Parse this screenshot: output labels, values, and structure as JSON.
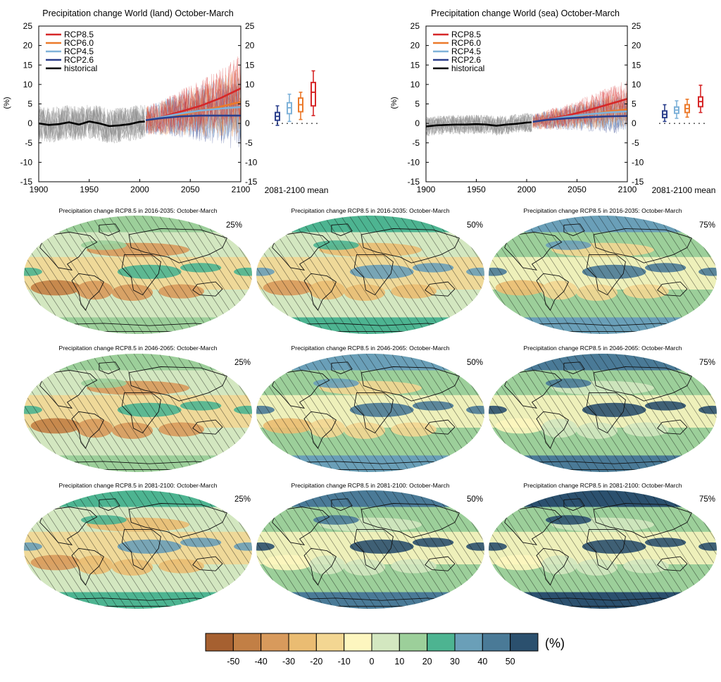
{
  "colors": {
    "rcp85": "#d62728",
    "rcp60": "#ec7a2b",
    "rcp45": "#7fb2d9",
    "rcp26": "#2b3f8c",
    "historical": "#000000",
    "historical_spread": "#8c8c8c"
  },
  "chart_data": [
    {
      "type": "line",
      "title": "Precipitation change World (land) October-March",
      "ylabel": "(%)",
      "xlim": [
        1900,
        2100
      ],
      "ylim": [
        -15,
        25
      ],
      "x_ticks": [
        "1900",
        "1950",
        "2000",
        "2050",
        "2100"
      ],
      "y_ticks": [
        "-15",
        "-10",
        "-5",
        "0",
        "5",
        "10",
        "15",
        "20",
        "25"
      ],
      "legend": [
        "RCP8.5",
        "RCP6.0",
        "RCP4.5",
        "RCP2.6",
        "historical"
      ],
      "legend_position": "top-left",
      "series": [
        {
          "name": "historical",
          "x": [
            1900,
            1910,
            1920,
            1930,
            1940,
            1950,
            1960,
            1970,
            1980,
            1990,
            2000,
            2005
          ],
          "values": [
            0,
            -0.4,
            -0.2,
            0.3,
            -0.3,
            0.5,
            0,
            -0.7,
            -0.5,
            -0.2,
            0.4,
            0.5
          ]
        },
        {
          "name": "RCP8.5",
          "x": [
            2006,
            2020,
            2040,
            2060,
            2080,
            2100
          ],
          "values": [
            0.8,
            1.5,
            3,
            4.5,
            6.5,
            9
          ]
        },
        {
          "name": "RCP6.0",
          "x": [
            2006,
            2020,
            2040,
            2060,
            2080,
            2100
          ],
          "values": [
            0.7,
            1.3,
            2.2,
            3.2,
            4.3,
            5.5
          ]
        },
        {
          "name": "RCP4.5",
          "x": [
            2006,
            2020,
            2040,
            2060,
            2080,
            2100
          ],
          "values": [
            0.8,
            1.5,
            2.5,
            3.3,
            3.8,
            4.2
          ]
        },
        {
          "name": "RCP2.6",
          "x": [
            2006,
            2020,
            2040,
            2060,
            2080,
            2100
          ],
          "values": [
            0.8,
            1.3,
            1.8,
            2,
            2,
            2
          ]
        }
      ],
      "boxplot": {
        "label": "2081-2100 mean",
        "series": [
          {
            "name": "RCP2.6",
            "whisker_low": -0.5,
            "q1": 0.8,
            "median": 1.8,
            "q3": 2.8,
            "whisker_high": 4.5
          },
          {
            "name": "RCP4.5",
            "whisker_low": 0.5,
            "q1": 2.5,
            "median": 4,
            "q3": 5.3,
            "whisker_high": 7.5
          },
          {
            "name": "RCP6.0",
            "whisker_low": 1,
            "q1": 3,
            "median": 4.8,
            "q3": 6.5,
            "whisker_high": 8
          },
          {
            "name": "RCP8.5",
            "whisker_low": 2,
            "q1": 4.5,
            "median": 8,
            "q3": 10.5,
            "whisker_high": 13.5
          }
        ]
      }
    },
    {
      "type": "line",
      "title": "Precipitation change World (sea) October-March",
      "ylabel": "(%)",
      "xlim": [
        1900,
        2100
      ],
      "ylim": [
        -15,
        25
      ],
      "x_ticks": [
        "1900",
        "1950",
        "2000",
        "2050",
        "2100"
      ],
      "y_ticks": [
        "-15",
        "-10",
        "-5",
        "0",
        "5",
        "10",
        "15",
        "20",
        "25"
      ],
      "legend": [
        "RCP8.5",
        "RCP6.0",
        "RCP4.5",
        "RCP2.6",
        "historical"
      ],
      "legend_position": "top-left",
      "series": [
        {
          "name": "historical",
          "x": [
            1900,
            1910,
            1920,
            1930,
            1940,
            1950,
            1960,
            1970,
            1980,
            1990,
            2000,
            2005
          ],
          "values": [
            -0.8,
            -0.5,
            -0.4,
            -0.3,
            -0.3,
            -0.2,
            -0.3,
            -0.6,
            -0.3,
            -0.1,
            0.2,
            0.3
          ]
        },
        {
          "name": "RCP8.5",
          "x": [
            2006,
            2020,
            2040,
            2060,
            2080,
            2100
          ],
          "values": [
            0.4,
            1,
            2,
            3.3,
            4.8,
            6.3
          ]
        },
        {
          "name": "RCP6.0",
          "x": [
            2006,
            2020,
            2040,
            2060,
            2080,
            2100
          ],
          "values": [
            0.4,
            0.8,
            1.5,
            2.2,
            3,
            3.6
          ]
        },
        {
          "name": "RCP4.5",
          "x": [
            2006,
            2020,
            2040,
            2060,
            2080,
            2100
          ],
          "values": [
            0.4,
            0.9,
            1.7,
            2.3,
            2.8,
            3.1
          ]
        },
        {
          "name": "RCP2.6",
          "x": [
            2006,
            2020,
            2040,
            2060,
            2080,
            2100
          ],
          "values": [
            0.4,
            0.9,
            1.3,
            1.6,
            1.8,
            1.9
          ]
        }
      ],
      "boxplot": {
        "label": "2081-2100 mean",
        "series": [
          {
            "name": "RCP2.6",
            "whisker_low": 0.5,
            "q1": 1.5,
            "median": 2.3,
            "q3": 3.2,
            "whisker_high": 4.8
          },
          {
            "name": "RCP4.5",
            "whisker_low": 1.3,
            "q1": 2.6,
            "median": 3.4,
            "q3": 4.2,
            "whisker_high": 5.8
          },
          {
            "name": "RCP6.0",
            "whisker_low": 1.6,
            "q1": 2.8,
            "median": 3.8,
            "q3": 4.8,
            "whisker_high": 6.2
          },
          {
            "name": "RCP8.5",
            "whisker_low": 2.8,
            "q1": 4.3,
            "median": 5.6,
            "q3": 6.8,
            "whisker_high": 9.8
          }
        ]
      }
    },
    {
      "type": "heatmap",
      "panels": [
        {
          "title": "Precipitation change RCP8.5 in 2016-2035: October-March",
          "percentile": "25%",
          "level": 0
        },
        {
          "title": "Precipitation change RCP8.5 in 2016-2035: October-March",
          "percentile": "50%",
          "level": 1
        },
        {
          "title": "Precipitation change RCP8.5 in 2016-2035: October-March",
          "percentile": "75%",
          "level": 2
        },
        {
          "title": "Precipitation change RCP8.5 in 2046-2065: October-March",
          "percentile": "25%",
          "level": 0
        },
        {
          "title": "Precipitation change RCP8.5 in 2046-2065: October-March",
          "percentile": "50%",
          "level": 2
        },
        {
          "title": "Precipitation change RCP8.5 in 2046-2065: October-March",
          "percentile": "75%",
          "level": 3
        },
        {
          "title": "Precipitation change RCP8.5 in 2081-2100: October-March",
          "percentile": "25%",
          "level": 1
        },
        {
          "title": "Precipitation change RCP8.5 in 2081-2100: October-March",
          "percentile": "50%",
          "level": 3
        },
        {
          "title": "Precipitation change RCP8.5 in 2081-2100: October-March",
          "percentile": "75%",
          "level": 4
        }
      ],
      "colorbar": {
        "unit": "(%)",
        "tick_labels": [
          "-50",
          "-40",
          "-30",
          "-20",
          "-10",
          "0",
          "10",
          "20",
          "30",
          "40",
          "50"
        ],
        "colors": [
          "#a66030",
          "#c27f45",
          "#d89a5c",
          "#eabc72",
          "#f3d692",
          "#fdf6bf",
          "#d3e7c0",
          "#9ccf9a",
          "#4db491",
          "#6a9fb8",
          "#4a7a97",
          "#2b506e"
        ]
      }
    }
  ]
}
